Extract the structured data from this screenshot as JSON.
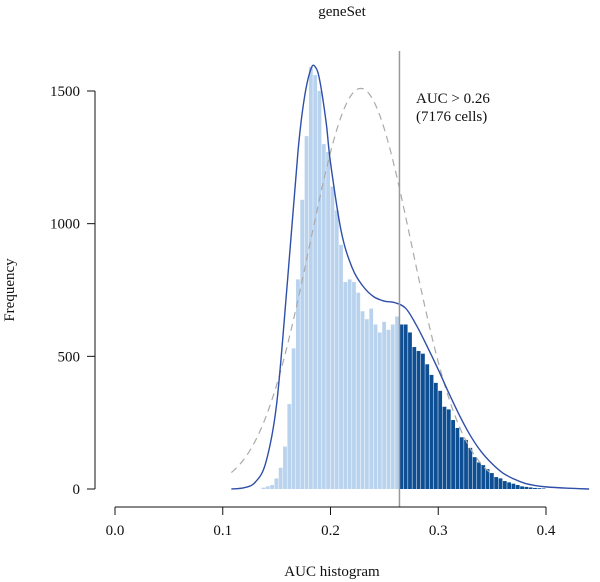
{
  "chart_data": {
    "type": "bar",
    "title": "geneSet",
    "xlabel": "AUC histogram",
    "ylabel": "Frequency",
    "xlim": [
      0.0,
      0.45
    ],
    "ylim": [
      0,
      1600
    ],
    "x_ticks": [
      0.0,
      0.1,
      0.2,
      0.3,
      0.4
    ],
    "x_tick_labels": [
      "0.0",
      "0.1",
      "0.2",
      "0.3",
      "0.4"
    ],
    "y_ticks": [
      0,
      500,
      1000,
      1500
    ],
    "y_tick_labels": [
      "0",
      "500",
      "1000",
      "1500"
    ],
    "grid": false,
    "bin_width": 0.004,
    "threshold": 0.264,
    "annotation": [
      "AUC > 0.26",
      "(7176 cells)"
    ],
    "colors": {
      "below_threshold": "#b9d3ef",
      "above_threshold": "#0e4f94",
      "density_curve": "#2f4fa8",
      "normal_fit": "#aaaaaa",
      "threshold_line": "#999999",
      "axis": "#111111"
    },
    "histogram": [
      {
        "x": 0.136,
        "y": 5
      },
      {
        "x": 0.14,
        "y": 10
      },
      {
        "x": 0.144,
        "y": 15
      },
      {
        "x": 0.148,
        "y": 40
      },
      {
        "x": 0.152,
        "y": 80
      },
      {
        "x": 0.156,
        "y": 160
      },
      {
        "x": 0.16,
        "y": 320
      },
      {
        "x": 0.164,
        "y": 530
      },
      {
        "x": 0.168,
        "y": 790
      },
      {
        "x": 0.172,
        "y": 1090
      },
      {
        "x": 0.176,
        "y": 1330
      },
      {
        "x": 0.18,
        "y": 1590
      },
      {
        "x": 0.184,
        "y": 1560
      },
      {
        "x": 0.188,
        "y": 1500
      },
      {
        "x": 0.192,
        "y": 1300
      },
      {
        "x": 0.196,
        "y": 1270
      },
      {
        "x": 0.2,
        "y": 1140
      },
      {
        "x": 0.204,
        "y": 1050
      },
      {
        "x": 0.208,
        "y": 920
      },
      {
        "x": 0.212,
        "y": 780
      },
      {
        "x": 0.216,
        "y": 790
      },
      {
        "x": 0.22,
        "y": 780
      },
      {
        "x": 0.224,
        "y": 740
      },
      {
        "x": 0.228,
        "y": 670
      },
      {
        "x": 0.232,
        "y": 640
      },
      {
        "x": 0.236,
        "y": 680
      },
      {
        "x": 0.24,
        "y": 620
      },
      {
        "x": 0.244,
        "y": 590
      },
      {
        "x": 0.248,
        "y": 630
      },
      {
        "x": 0.252,
        "y": 600
      },
      {
        "x": 0.256,
        "y": 620
      },
      {
        "x": 0.26,
        "y": 650
      },
      {
        "x": 0.264,
        "y": 620
      },
      {
        "x": 0.268,
        "y": 620
      },
      {
        "x": 0.272,
        "y": 590
      },
      {
        "x": 0.276,
        "y": 535
      },
      {
        "x": 0.28,
        "y": 520
      },
      {
        "x": 0.284,
        "y": 510
      },
      {
        "x": 0.288,
        "y": 470
      },
      {
        "x": 0.292,
        "y": 430
      },
      {
        "x": 0.296,
        "y": 400
      },
      {
        "x": 0.3,
        "y": 370
      },
      {
        "x": 0.304,
        "y": 310
      },
      {
        "x": 0.308,
        "y": 300
      },
      {
        "x": 0.312,
        "y": 260
      },
      {
        "x": 0.316,
        "y": 230
      },
      {
        "x": 0.32,
        "y": 195
      },
      {
        "x": 0.324,
        "y": 185
      },
      {
        "x": 0.328,
        "y": 155
      },
      {
        "x": 0.332,
        "y": 120
      },
      {
        "x": 0.336,
        "y": 100
      },
      {
        "x": 0.34,
        "y": 90
      },
      {
        "x": 0.344,
        "y": 75
      },
      {
        "x": 0.348,
        "y": 60
      },
      {
        "x": 0.352,
        "y": 45
      },
      {
        "x": 0.356,
        "y": 40
      },
      {
        "x": 0.36,
        "y": 30
      },
      {
        "x": 0.364,
        "y": 25
      },
      {
        "x": 0.368,
        "y": 20
      },
      {
        "x": 0.372,
        "y": 15
      },
      {
        "x": 0.376,
        "y": 10
      },
      {
        "x": 0.38,
        "y": 8
      },
      {
        "x": 0.384,
        "y": 6
      },
      {
        "x": 0.388,
        "y": 4
      },
      {
        "x": 0.392,
        "y": 3
      },
      {
        "x": 0.396,
        "y": 2
      }
    ],
    "density_curve": [
      [
        0.108,
        0
      ],
      [
        0.12,
        5
      ],
      [
        0.13,
        25
      ],
      [
        0.14,
        100
      ],
      [
        0.15,
        320
      ],
      [
        0.16,
        780
      ],
      [
        0.17,
        1280
      ],
      [
        0.176,
        1480
      ],
      [
        0.182,
        1585
      ],
      [
        0.186,
        1590
      ],
      [
        0.19,
        1540
      ],
      [
        0.196,
        1380
      ],
      [
        0.2,
        1230
      ],
      [
        0.21,
        970
      ],
      [
        0.22,
        835
      ],
      [
        0.23,
        765
      ],
      [
        0.24,
        725
      ],
      [
        0.25,
        708
      ],
      [
        0.26,
        702
      ],
      [
        0.27,
        680
      ],
      [
        0.28,
        615
      ],
      [
        0.29,
        535
      ],
      [
        0.3,
        450
      ],
      [
        0.31,
        360
      ],
      [
        0.32,
        275
      ],
      [
        0.33,
        200
      ],
      [
        0.34,
        140
      ],
      [
        0.35,
        95
      ],
      [
        0.36,
        60
      ],
      [
        0.37,
        38
      ],
      [
        0.38,
        22
      ],
      [
        0.39,
        13
      ],
      [
        0.4,
        8
      ],
      [
        0.42,
        3
      ],
      [
        0.44,
        0
      ]
    ],
    "normal_fit": {
      "mean": 0.228,
      "sd": 0.0475,
      "peak": 1510,
      "from": 0.108,
      "to": 0.348
    }
  }
}
